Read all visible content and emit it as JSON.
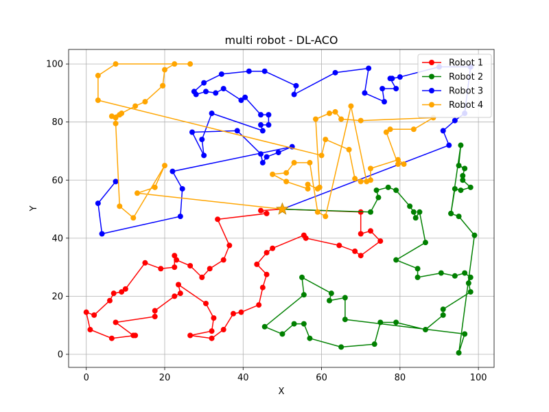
{
  "chart_data": {
    "type": "line",
    "title": "multi robot - DL-ACO",
    "xlabel": "X",
    "ylabel": "Y",
    "xlim": [
      -4.5,
      104
    ],
    "ylim": [
      -4.5,
      105
    ],
    "xticks": [
      0,
      20,
      40,
      60,
      80,
      100
    ],
    "yticks": [
      0,
      20,
      40,
      60,
      80,
      100
    ],
    "grid": true,
    "legend": "top-right",
    "start_point": {
      "x": 50,
      "y": 50,
      "color": "#ffa500"
    },
    "series": [
      {
        "name": "Robot 1",
        "color": "#ff0000",
        "points": [
          [
            50,
            50
          ],
          [
            44.5,
            49.5
          ],
          [
            46,
            48.5
          ],
          [
            33.5,
            46.5
          ],
          [
            36.5,
            37.5
          ],
          [
            35,
            32.5
          ],
          [
            31.5,
            29.5
          ],
          [
            29.5,
            26.5
          ],
          [
            26.5,
            30.5
          ],
          [
            23,
            32.5
          ],
          [
            22.5,
            34
          ],
          [
            22.5,
            30
          ],
          [
            19,
            29.5
          ],
          [
            15,
            31.5
          ],
          [
            10,
            22.5
          ],
          [
            9,
            21.5
          ],
          [
            7,
            21
          ],
          [
            6,
            18.5
          ],
          [
            2,
            13.5
          ],
          [
            0,
            14.5
          ],
          [
            1,
            8.5
          ],
          [
            6.5,
            5.5
          ],
          [
            12.5,
            6.5
          ],
          [
            12,
            6.5
          ],
          [
            7.5,
            11
          ],
          [
            17.5,
            13
          ],
          [
            17.5,
            15
          ],
          [
            22.5,
            20
          ],
          [
            24,
            21
          ],
          [
            23.5,
            24
          ],
          [
            30.5,
            17.5
          ],
          [
            32.5,
            12.5
          ],
          [
            32,
            8
          ],
          [
            26.5,
            6.5
          ],
          [
            32,
            5.5
          ],
          [
            35,
            8.5
          ],
          [
            37.5,
            14
          ],
          [
            39.5,
            14.5
          ],
          [
            44,
            17
          ],
          [
            45,
            23
          ],
          [
            46,
            27.5
          ],
          [
            43.5,
            31
          ],
          [
            46,
            35
          ],
          [
            47.5,
            36.5
          ],
          [
            55.5,
            41
          ],
          [
            56,
            40
          ],
          [
            64.5,
            37.5
          ],
          [
            68.5,
            35.5
          ],
          [
            70,
            34
          ],
          [
            75,
            39
          ],
          [
            72.5,
            42.5
          ],
          [
            70,
            41.5
          ],
          [
            70,
            49
          ],
          [
            50,
            50
          ]
        ]
      },
      {
        "name": "Robot 2",
        "color": "#008000",
        "points": [
          [
            50,
            50
          ],
          [
            72.5,
            49
          ],
          [
            74.5,
            54
          ],
          [
            74,
            56.5
          ],
          [
            77,
            57.5
          ],
          [
            79,
            56.5
          ],
          [
            82.5,
            51
          ],
          [
            83.5,
            49
          ],
          [
            84,
            47
          ],
          [
            85,
            49
          ],
          [
            86.5,
            38.5
          ],
          [
            79,
            32.5
          ],
          [
            84.5,
            29.5
          ],
          [
            84.5,
            26.5
          ],
          [
            90.5,
            28
          ],
          [
            94,
            27
          ],
          [
            96.5,
            28
          ],
          [
            98,
            26.5
          ],
          [
            97.5,
            24.5
          ],
          [
            98,
            21.5
          ],
          [
            91,
            15.5
          ],
          [
            91,
            13.5
          ],
          [
            86.5,
            8.5
          ],
          [
            79,
            11
          ],
          [
            75,
            11
          ],
          [
            73.5,
            3.5
          ],
          [
            65,
            2.5
          ],
          [
            57,
            5.5
          ],
          [
            55.5,
            10.5
          ],
          [
            53,
            10.5
          ],
          [
            50,
            7
          ],
          [
            45.5,
            9.5
          ],
          [
            55.5,
            20.5
          ],
          [
            55,
            26.5
          ],
          [
            62.5,
            21
          ],
          [
            62,
            18.5
          ],
          [
            66,
            19.5
          ],
          [
            66,
            12
          ],
          [
            96.5,
            7
          ],
          [
            95,
            0.5
          ],
          [
            99,
            41
          ],
          [
            95,
            47.5
          ],
          [
            93,
            48.5
          ],
          [
            94,
            57
          ],
          [
            95.5,
            56.5
          ],
          [
            98,
            57.5
          ],
          [
            96,
            60
          ],
          [
            96,
            61.5
          ],
          [
            96.5,
            64
          ],
          [
            95,
            65
          ],
          [
            95.5,
            72
          ],
          [
            93,
            48.5
          ]
        ]
      },
      {
        "name": "Robot 3",
        "color": "#0000ff",
        "points": [
          [
            50,
            50
          ],
          [
            92.5,
            72
          ],
          [
            91,
            77
          ],
          [
            94,
            80.5
          ],
          [
            96.5,
            83
          ],
          [
            98,
            99
          ],
          [
            90,
            99
          ],
          [
            80,
            95.5
          ],
          [
            78,
            95
          ],
          [
            77.5,
            95
          ],
          [
            79,
            91.5
          ],
          [
            75.5,
            91.5
          ],
          [
            76,
            87
          ],
          [
            71,
            90
          ],
          [
            72,
            98.5
          ],
          [
            63.5,
            97
          ],
          [
            53,
            89.5
          ],
          [
            53.5,
            92.5
          ],
          [
            45.5,
            97.5
          ],
          [
            41.5,
            97.5
          ],
          [
            34.5,
            96.5
          ],
          [
            30,
            93.5
          ],
          [
            27.5,
            90.5
          ],
          [
            28,
            89.5
          ],
          [
            30.5,
            90.5
          ],
          [
            33,
            90
          ],
          [
            35,
            91.5
          ],
          [
            39.5,
            87.5
          ],
          [
            40.5,
            88.5
          ],
          [
            44.5,
            82.5
          ],
          [
            46.5,
            82.5
          ],
          [
            46.5,
            79
          ],
          [
            44.5,
            79
          ],
          [
            45,
            77
          ],
          [
            32,
            83
          ],
          [
            29.5,
            74
          ],
          [
            30,
            68.5
          ],
          [
            27,
            76.5
          ],
          [
            38.5,
            77
          ],
          [
            44.5,
            69
          ],
          [
            45,
            66
          ],
          [
            46,
            68
          ],
          [
            49,
            69.5
          ],
          [
            52.5,
            71.5
          ],
          [
            22,
            63
          ],
          [
            24.5,
            57
          ],
          [
            24,
            47.5
          ],
          [
            4,
            41.5
          ],
          [
            3,
            52
          ],
          [
            7.5,
            59.5
          ]
        ]
      },
      {
        "name": "Robot 4",
        "color": "#ffa500",
        "points": [
          [
            50,
            50
          ],
          [
            13,
            55.5
          ],
          [
            17.5,
            57.5
          ],
          [
            20,
            65
          ],
          [
            12,
            47
          ],
          [
            8.5,
            51
          ],
          [
            7.5,
            79.5
          ],
          [
            7.5,
            81.5
          ],
          [
            8.5,
            82.5
          ],
          [
            6.5,
            82
          ],
          [
            9,
            83
          ],
          [
            12.5,
            85.5
          ],
          [
            15,
            87
          ],
          [
            19.5,
            92.5
          ],
          [
            19.5,
            92.5
          ],
          [
            20,
            98
          ],
          [
            22.5,
            100
          ],
          [
            26.5,
            100
          ],
          [
            7.5,
            100
          ],
          [
            3,
            96
          ],
          [
            3,
            87.5
          ],
          [
            60,
            68.5
          ],
          [
            61,
            74
          ],
          [
            67,
            70.5
          ],
          [
            68.5,
            60.5
          ],
          [
            70,
            59.5
          ],
          [
            72.5,
            60
          ],
          [
            72.5,
            64
          ],
          [
            79.5,
            67
          ],
          [
            81,
            65.5
          ],
          [
            79.5,
            65.5
          ],
          [
            76.5,
            76.5
          ],
          [
            77.5,
            77.5
          ],
          [
            83.5,
            77.5
          ],
          [
            88.5,
            81.5
          ],
          [
            70,
            80.5
          ],
          [
            65,
            81
          ],
          [
            63.5,
            83.5
          ],
          [
            62,
            83
          ],
          [
            58.5,
            81
          ],
          [
            59.5,
            57.5
          ],
          [
            59,
            57
          ],
          [
            56.5,
            58.5
          ],
          [
            56.5,
            57
          ],
          [
            51,
            59.5
          ],
          [
            47.5,
            62
          ],
          [
            51,
            62.5
          ],
          [
            53,
            66
          ],
          [
            57,
            66
          ],
          [
            59,
            49
          ],
          [
            61,
            47.5
          ],
          [
            67.5,
            85.5
          ],
          [
            71.5,
            59.5
          ]
        ]
      }
    ]
  }
}
